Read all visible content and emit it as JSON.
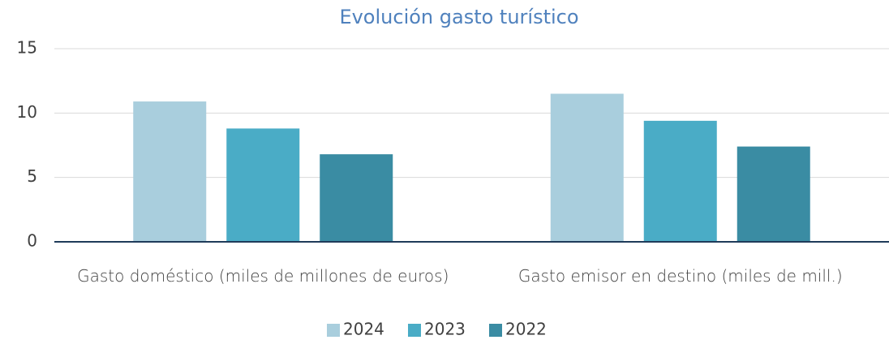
{
  "chart_data": {
    "type": "bar",
    "title": "Evolución gasto turístico",
    "categories": [
      "Gasto doméstico (miles de millones de euros)",
      "Gasto emisor en destino (miles de mill.)"
    ],
    "series": [
      {
        "name": "2024",
        "color": "#a9cedd",
        "values": [
          10.9,
          11.5
        ]
      },
      {
        "name": "2023",
        "color": "#4aacc6",
        "values": [
          8.8,
          9.4
        ]
      },
      {
        "name": "2022",
        "color": "#3a8ca3",
        "values": [
          6.8,
          7.4
        ]
      }
    ],
    "ylim": [
      0,
      15
    ],
    "yticks": [
      0,
      5,
      10,
      15
    ],
    "grid": true,
    "legend": "bottom"
  }
}
